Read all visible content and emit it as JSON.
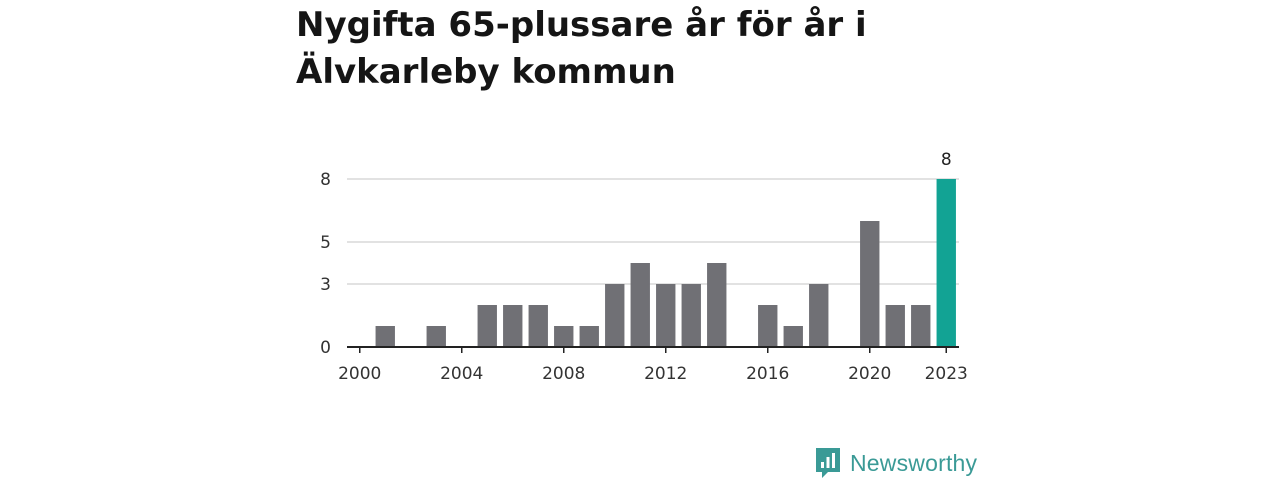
{
  "title": "Nygifta 65-plussare år för år i Älvkarleby kommun",
  "brand": {
    "name": "Newsworthy",
    "icon": "newsworthy-logo-icon"
  },
  "colors": {
    "bar": "#707075",
    "highlight": "#12a394",
    "grid": "#d9d9d9",
    "axis": "#222222",
    "brand": "#3a9a96"
  },
  "chart_data": {
    "type": "bar",
    "x": [
      2000,
      2001,
      2002,
      2003,
      2004,
      2005,
      2006,
      2007,
      2008,
      2009,
      2010,
      2011,
      2012,
      2013,
      2014,
      2015,
      2016,
      2017,
      2018,
      2019,
      2020,
      2021,
      2022,
      2023
    ],
    "values": [
      0,
      1,
      0,
      1,
      0,
      2,
      2,
      2,
      1,
      1,
      3,
      4,
      3,
      3,
      4,
      0,
      2,
      1,
      3,
      0,
      6,
      2,
      2,
      8
    ],
    "highlight_index": 23,
    "xticks": [
      "2000",
      "2004",
      "2008",
      "2012",
      "2016",
      "2020",
      "2023"
    ],
    "yticks": [
      "0",
      "3",
      "5",
      "8"
    ],
    "ylim": [
      0,
      8
    ],
    "grid": true,
    "annotation": {
      "x": 2023,
      "text": "8"
    }
  }
}
